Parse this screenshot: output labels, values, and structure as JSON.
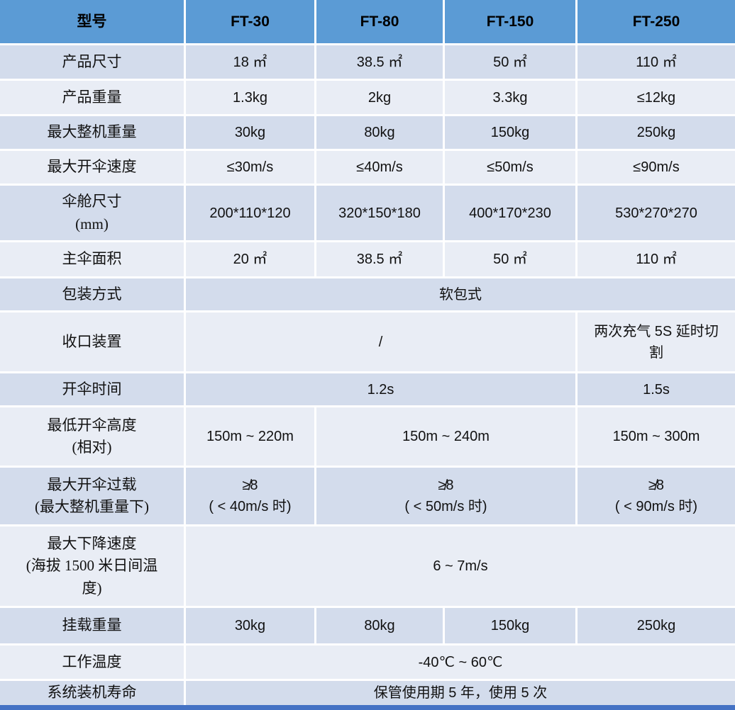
{
  "colors": {
    "header_bg": "#5B9BD5",
    "row_alt_dark": "#D3DCEC",
    "row_alt_light": "#E9EDF5",
    "grid_line": "#FFFFFF",
    "bottom_bar": "#4472C4",
    "text": "#111111"
  },
  "table": {
    "header": {
      "label": "型号",
      "columns": [
        "FT-30",
        "FT-80",
        "FT-150",
        "FT-250"
      ]
    },
    "rows": [
      {
        "label": "产品尺寸",
        "cells": [
          {
            "text": "18 ㎡"
          },
          {
            "text": "38.5 ㎡"
          },
          {
            "text": "50 ㎡"
          },
          {
            "text": "110 ㎡"
          }
        ]
      },
      {
        "label": "产品重量",
        "cells": [
          {
            "text": "1.3kg"
          },
          {
            "text": "2kg"
          },
          {
            "text": "3.3kg"
          },
          {
            "text": "≤12kg"
          }
        ]
      },
      {
        "label": "最大整机重量",
        "cells": [
          {
            "text": "30kg"
          },
          {
            "text": "80kg"
          },
          {
            "text": "150kg"
          },
          {
            "text": "250kg"
          }
        ]
      },
      {
        "label": "最大开伞速度",
        "cells": [
          {
            "text": "≤30m/s"
          },
          {
            "text": "≤40m/s"
          },
          {
            "text": "≤50m/s"
          },
          {
            "text": "≤90m/s"
          }
        ]
      },
      {
        "label": "伞舱尺寸\n(mm)",
        "cells": [
          {
            "text": "200*110*120"
          },
          {
            "text": "320*150*180"
          },
          {
            "text": "400*170*230"
          },
          {
            "text": "530*270*270"
          }
        ]
      },
      {
        "label": "主伞面积",
        "cells": [
          {
            "text": "20 ㎡"
          },
          {
            "text": "38.5 ㎡"
          },
          {
            "text": "50 ㎡"
          },
          {
            "text": "110 ㎡"
          }
        ]
      },
      {
        "label": "包装方式",
        "cells": [
          {
            "text": "软包式",
            "span": 4
          }
        ]
      },
      {
        "label": "收口装置",
        "cells": [
          {
            "text": "/",
            "span": 3
          },
          {
            "text": "两次充气 5S 延时切\n割"
          }
        ]
      },
      {
        "label": "开伞时间",
        "cells": [
          {
            "text": "1.2s",
            "span": 3
          },
          {
            "text": "1.5s"
          }
        ]
      },
      {
        "label": "最低开伞高度\n(相对)",
        "cells": [
          {
            "text": "150m ~ 220m"
          },
          {
            "text": "150m ~ 240m",
            "span": 2
          },
          {
            "text": "150m ~ 300m"
          }
        ]
      },
      {
        "label": "最大开伞过载\n(最大整机重量下)",
        "cells": [
          {
            "text": "≱8\n( < 40m/s 时)"
          },
          {
            "text": "≱8\n( < 50m/s 时)",
            "span": 2
          },
          {
            "text": "≱8\n( < 90m/s 时)"
          }
        ]
      },
      {
        "label": "最大下降速度\n(海拔 1500 米日间温\n度)",
        "cells": [
          {
            "text": "6 ~ 7m/s",
            "span": 4
          }
        ]
      },
      {
        "label": "挂载重量",
        "cells": [
          {
            "text": "30kg"
          },
          {
            "text": "80kg"
          },
          {
            "text": "150kg"
          },
          {
            "text": "250kg"
          }
        ]
      },
      {
        "label": "工作温度",
        "cells": [
          {
            "text": "-40℃ ~ 60℃",
            "span": 4
          }
        ]
      },
      {
        "label": "系统装机寿命",
        "cells": [
          {
            "text": "保管使用期 5 年，使用 5 次",
            "span": 4
          }
        ]
      }
    ]
  }
}
